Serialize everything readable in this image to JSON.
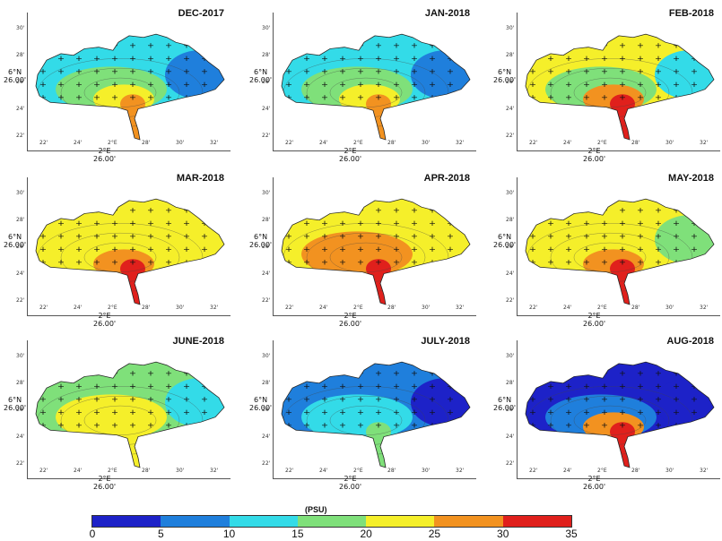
{
  "colorbar": {
    "unit": "(PSU)",
    "ticks": [
      "0",
      "5",
      "10",
      "15",
      "20",
      "25",
      "30",
      "35"
    ],
    "colors": [
      "#1d22c8",
      "#1f7fdc",
      "#33dbe8",
      "#7fe07a",
      "#f5ef2a",
      "#f29220",
      "#e0201c"
    ]
  },
  "axes": {
    "y_ticks": [
      "30'",
      "28'",
      "26'",
      "24'",
      "22'"
    ],
    "x_ticks": [
      "22'",
      "24'",
      "2°E",
      "28'",
      "30'",
      "32'"
    ],
    "ylabel": [
      "6°N",
      "26.00'"
    ],
    "xlabel": [
      "2°E",
      "26.00'"
    ]
  },
  "panels": [
    {
      "title": "DEC-2017",
      "dominant": "15-20",
      "colors": {
        "base": "#33dbe8",
        "mid": "#7fe07a",
        "hot": "#f5ef2a",
        "core": "#f29220",
        "east": "#1f7fdc"
      }
    },
    {
      "title": "JAN-2018",
      "dominant": "15-20",
      "colors": {
        "base": "#33dbe8",
        "mid": "#7fe07a",
        "hot": "#f5ef2a",
        "core": "#f29220",
        "east": "#1f7fdc"
      }
    },
    {
      "title": "FEB-2018",
      "dominant": "20-25",
      "colors": {
        "base": "#f5ef2a",
        "mid": "#7fe07a",
        "hot": "#f29220",
        "core": "#e0201c",
        "east": "#33dbe8"
      }
    },
    {
      "title": "MAR-2018",
      "dominant": "20-25",
      "colors": {
        "base": "#f5ef2a",
        "mid": "#f5ef2a",
        "hot": "#f29220",
        "core": "#e0201c",
        "east": "#f5ef2a"
      }
    },
    {
      "title": "APR-2018",
      "dominant": "20-30",
      "colors": {
        "base": "#f5ef2a",
        "mid": "#f29220",
        "hot": "#f29220",
        "core": "#e0201c",
        "east": "#f5ef2a"
      }
    },
    {
      "title": "MAY-2018",
      "dominant": "20-25",
      "colors": {
        "base": "#f5ef2a",
        "mid": "#f5ef2a",
        "hot": "#f29220",
        "core": "#e0201c",
        "east": "#7fe07a"
      }
    },
    {
      "title": "JUNE-2018",
      "dominant": "15-20",
      "colors": {
        "base": "#7fe07a",
        "mid": "#f5ef2a",
        "hot": "#f5ef2a",
        "core": "#f5ef2a",
        "east": "#33dbe8"
      }
    },
    {
      "title": "JULY-2018",
      "dominant": "0-15",
      "colors": {
        "base": "#1f7fdc",
        "mid": "#33dbe8",
        "hot": "#33dbe8",
        "core": "#7fe07a",
        "east": "#1d22c8"
      }
    },
    {
      "title": "AUG-2018",
      "dominant": "0-5",
      "colors": {
        "base": "#1d22c8",
        "mid": "#1f7fdc",
        "hot": "#f29220",
        "core": "#e0201c",
        "east": "#1d22c8"
      }
    }
  ]
}
